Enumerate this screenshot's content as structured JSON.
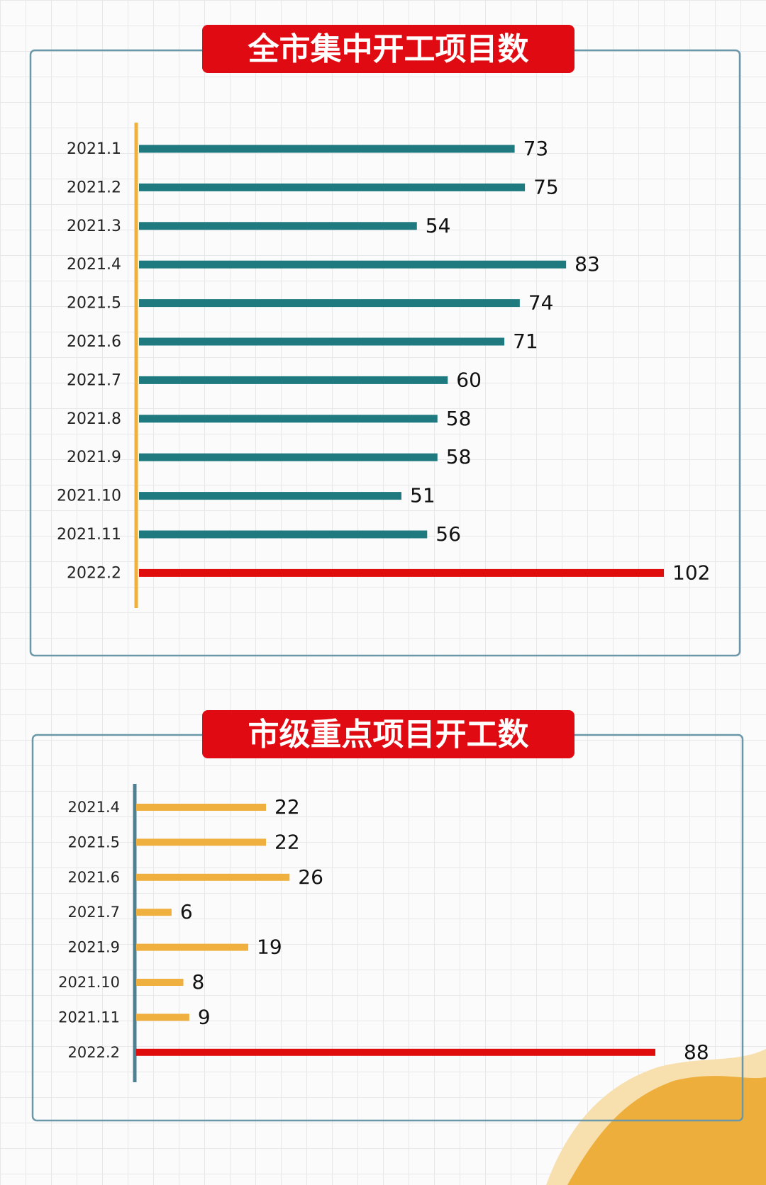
{
  "chart_data": [
    {
      "type": "bar",
      "orientation": "horizontal",
      "title": "全市集中开工项目数",
      "categories": [
        "2021.1",
        "2021.2",
        "2021.3",
        "2021.4",
        "2021.5",
        "2021.6",
        "2021.7",
        "2021.8",
        "2021.9",
        "2021.10",
        "2021.11",
        "2022.2"
      ],
      "values": [
        73,
        75,
        54,
        83,
        74,
        71,
        60,
        58,
        58,
        51,
        56,
        102
      ],
      "colors": [
        "#1f7a80",
        "#1f7a80",
        "#1f7a80",
        "#1f7a80",
        "#1f7a80",
        "#1f7a80",
        "#1f7a80",
        "#1f7a80",
        "#1f7a80",
        "#1f7a80",
        "#1f7a80",
        "#e00d0d"
      ],
      "axis_color": "#f0b13a"
    },
    {
      "type": "bar",
      "orientation": "horizontal",
      "title": "市级重点项目开工数",
      "categories": [
        "2021.4",
        "2021.5",
        "2021.6",
        "2021.7",
        "2021.9",
        "2021.10",
        "2021.11",
        "2022.2"
      ],
      "values": [
        22,
        22,
        26,
        6,
        19,
        8,
        9,
        88
      ],
      "colors": [
        "#f0b040",
        "#f0b040",
        "#f0b040",
        "#f0b040",
        "#f0b040",
        "#f0b040",
        "#f0b040",
        "#e00d0d"
      ],
      "axis_color": "#4f7f92"
    }
  ]
}
